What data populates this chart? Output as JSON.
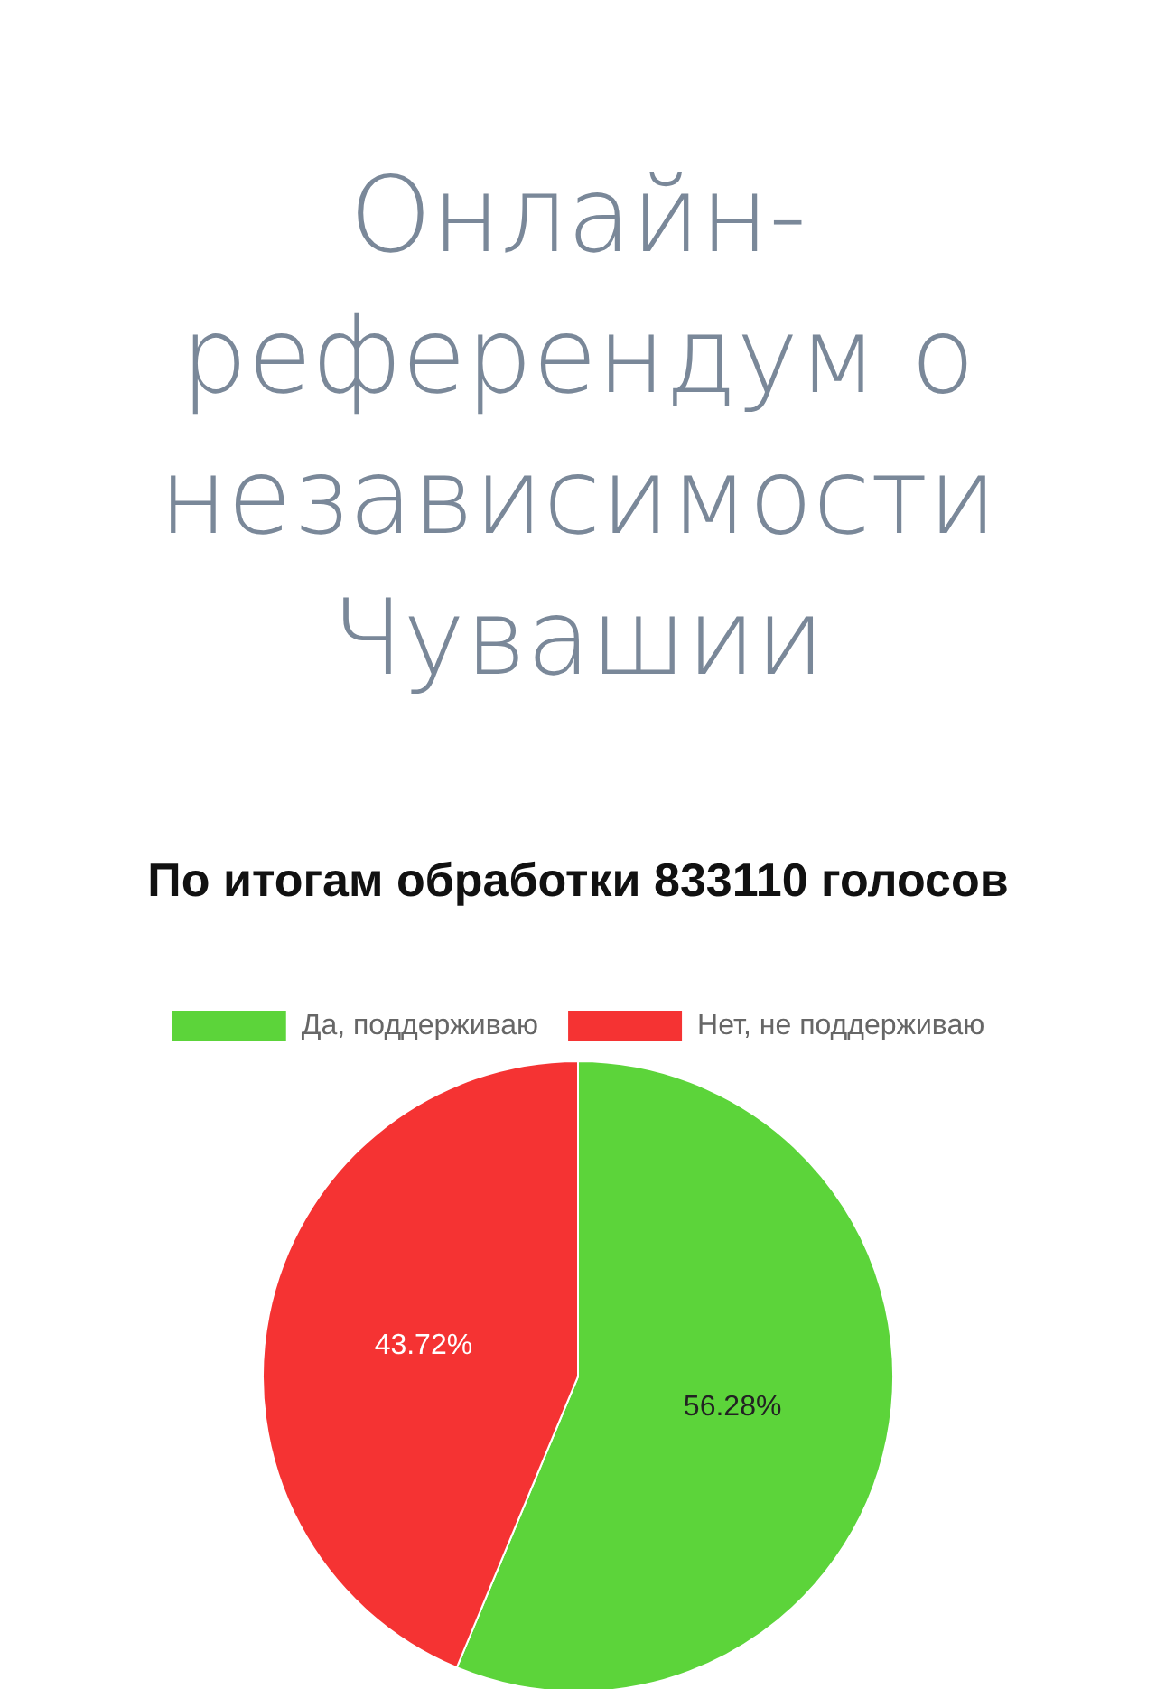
{
  "chart_data": {
    "type": "pie",
    "title": "Онлайн-референдум о независимости Чувашии",
    "subtitle": "По итогам обработки 833110 голосов",
    "categories": [
      "Да, поддерживаю",
      "Нет, не поддерживаю"
    ],
    "values": [
      56.28,
      43.72
    ],
    "colors": [
      "#5cd43a",
      "#f53333"
    ],
    "value_labels": [
      "56.28%",
      "43.72%"
    ],
    "legend": "top"
  }
}
